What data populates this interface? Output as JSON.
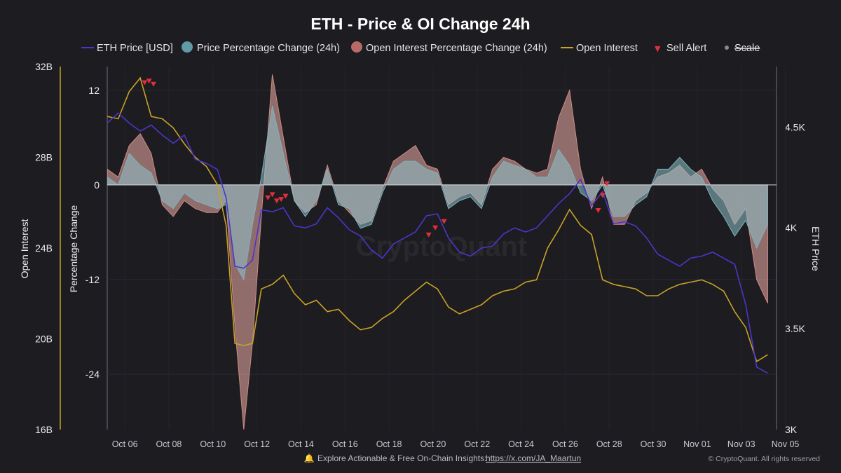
{
  "chart_data": {
    "type": "line",
    "title": "ETH - Price & OI Change 24h",
    "legend": [
      {
        "label": "ETH Price [USD]",
        "color": "#4b36c9",
        "marker": "line"
      },
      {
        "label": "Price Percentage Change (24h)",
        "color": "#5f9aa6",
        "marker": "circle"
      },
      {
        "label": "Open Interest Percentage Change (24h)",
        "color": "#b86a68",
        "marker": "circle"
      },
      {
        "label": "Open Interest",
        "color": "#c9a227",
        "marker": "line"
      },
      {
        "label": "Sell Alert",
        "color": "#e0303a",
        "marker": "triangle"
      },
      {
        "label": "Scale",
        "color": "#8a8a92",
        "marker": "dot",
        "struck": true
      }
    ],
    "legend_placement": "top",
    "axes": {
      "open_interest": {
        "label": "Open Interest",
        "ticks": [
          "32B",
          "28B",
          "24B",
          "20B",
          "16B"
        ],
        "range": [
          16,
          32
        ],
        "unit": "B"
      },
      "percentage": {
        "label": "Percentage Change",
        "ticks": [
          "12",
          "0",
          "-12",
          "-24"
        ],
        "range": [
          -31,
          15
        ]
      },
      "eth_price": {
        "label": "ETH Price",
        "ticks": [
          "4.5K",
          "4K",
          "3.5K",
          "3K"
        ],
        "range": [
          3000,
          4800
        ]
      },
      "x_ticks": [
        "Oct 06",
        "Oct 08",
        "Oct 10",
        "Oct 12",
        "Oct 14",
        "Oct 16",
        "Oct 18",
        "Oct 20",
        "Oct 22",
        "Oct 24",
        "Oct 26",
        "Oct 28",
        "Oct 30",
        "Nov 01",
        "Nov 03",
        "Nov 05"
      ],
      "x_range": [
        5.0,
        35.4
      ]
    },
    "x": [
      5.0,
      5.5,
      6.0,
      6.5,
      7.0,
      7.5,
      8.0,
      8.5,
      9.0,
      9.5,
      10.0,
      10.4,
      10.8,
      11.2,
      11.6,
      12.0,
      12.5,
      13.0,
      13.5,
      14.0,
      14.5,
      15.0,
      15.5,
      16.0,
      16.5,
      17.0,
      17.5,
      18.0,
      18.5,
      19.0,
      19.5,
      20.0,
      20.5,
      21.0,
      21.5,
      22.0,
      22.5,
      23.0,
      23.5,
      24.0,
      24.5,
      25.0,
      25.5,
      26.0,
      26.5,
      27.0,
      27.5,
      28.0,
      28.5,
      29.0,
      29.5,
      30.0,
      30.5,
      31.0,
      31.5,
      32.0,
      32.5,
      33.0,
      33.5,
      34.0,
      34.5,
      35.0
    ],
    "series": [
      {
        "name": "ETH Price [USD]",
        "axis": "eth_price",
        "values": [
          4520,
          4570,
          4520,
          4480,
          4510,
          4460,
          4420,
          4460,
          4340,
          4320,
          4290,
          4150,
          3810,
          3800,
          3840,
          4090,
          4080,
          4100,
          4010,
          4000,
          4020,
          4100,
          4050,
          3990,
          3960,
          3890,
          3850,
          3920,
          3950,
          3980,
          4060,
          4070,
          3950,
          3880,
          3860,
          3900,
          3910,
          3970,
          4000,
          3980,
          4000,
          4060,
          4120,
          4170,
          4240,
          4110,
          4180,
          4020,
          4030,
          4010,
          3950,
          3870,
          3840,
          3810,
          3850,
          3860,
          3880,
          3850,
          3820,
          3620,
          3310,
          3280
        ]
      },
      {
        "name": "Price Percentage Change (24h)",
        "axis": "percentage",
        "values": [
          1.0,
          0.0,
          4.0,
          2.5,
          1.5,
          -2.0,
          -3.0,
          -1.0,
          -2.0,
          -2.5,
          -3.0,
          -2.5,
          -10.0,
          -12.0,
          -5.0,
          1.0,
          10.0,
          4.0,
          -2.0,
          -4.0,
          -2.0,
          2.0,
          -2.5,
          -3.0,
          -5.5,
          -5.0,
          -1.0,
          2.0,
          3.0,
          3.0,
          2.0,
          1.5,
          -3.0,
          -2.0,
          -1.5,
          -3.0,
          1.0,
          3.0,
          2.5,
          2.0,
          1.0,
          1.0,
          4.5,
          2.5,
          -1.0,
          -2.0,
          0.0,
          -4.0,
          -4.0,
          -2.5,
          -1.5,
          2.0,
          2.0,
          3.5,
          2.0,
          1.0,
          -2.0,
          -4.0,
          -6.5,
          -4.5,
          -8.0,
          -5.0
        ]
      },
      {
        "name": "Open Interest Percentage Change (24h)",
        "axis": "percentage",
        "values": [
          2.0,
          1.0,
          5.0,
          6.5,
          4.0,
          -2.5,
          -4.0,
          -2.0,
          -3.0,
          -3.5,
          -3.5,
          -2.0,
          -18.0,
          -31.0,
          -20.0,
          -4.0,
          14.0,
          6.0,
          -2.0,
          -3.5,
          -2.5,
          2.5,
          -2.0,
          -3.5,
          -5.0,
          -4.5,
          -0.5,
          3.0,
          4.0,
          5.0,
          2.5,
          2.0,
          -2.5,
          -1.5,
          -1.0,
          -2.5,
          2.0,
          3.5,
          3.0,
          2.0,
          1.5,
          2.0,
          8.5,
          12.0,
          2.0,
          -3.0,
          1.0,
          -5.0,
          -5.0,
          -2.0,
          -1.0,
          1.0,
          1.5,
          2.5,
          1.0,
          2.0,
          -0.5,
          -2.0,
          -5.0,
          -3.0,
          -12.0,
          -15.0
        ]
      },
      {
        "name": "Open Interest",
        "axis": "open_interest",
        "values": [
          29.8,
          29.7,
          30.9,
          31.5,
          29.8,
          29.7,
          29.3,
          28.6,
          28.0,
          27.6,
          26.8,
          25.0,
          19.8,
          19.7,
          19.8,
          22.2,
          22.4,
          22.8,
          22.0,
          21.5,
          21.7,
          21.2,
          21.3,
          20.8,
          20.4,
          20.5,
          20.9,
          21.2,
          21.7,
          22.1,
          22.5,
          22.2,
          21.4,
          21.1,
          21.3,
          21.5,
          21.9,
          22.1,
          22.2,
          22.5,
          22.6,
          24.0,
          24.8,
          25.7,
          25.0,
          24.6,
          22.6,
          22.4,
          22.3,
          22.2,
          21.9,
          21.9,
          22.2,
          22.4,
          22.5,
          22.6,
          22.4,
          22.1,
          21.2,
          20.5,
          19.0,
          19.3
        ]
      },
      {
        "name": "Sell Alert",
        "axis": "percentage",
        "x": [
          6.7,
          6.9,
          7.1,
          12.3,
          12.5,
          12.7,
          12.9,
          13.1,
          19.6,
          19.9,
          20.3,
          27.3,
          27.5,
          27.7
        ],
        "values": [
          13.0,
          13.2,
          12.8,
          -1.6,
          -1.2,
          -2.0,
          -1.8,
          -1.4,
          -6.3,
          -5.4,
          -4.6,
          -3.2,
          -1.3,
          0.2
        ]
      }
    ]
  },
  "footer": {
    "bell_icon": "bell-icon",
    "insight_text": "Explore Actionable & Free On-Chain Insights:",
    "link_text": "https://x.com/JA_Maartun",
    "copyright": "© CryptoQuant. All rights reserved"
  },
  "watermark": "CryptoQuant",
  "colors": {
    "background": "#1c1c21",
    "price_line": "#4b36c9",
    "oi_line": "#c9a227",
    "price_fill": "#8fc3cc",
    "oi_change_fill": "#f1b1a9",
    "sell_alert": "#e0303a"
  }
}
